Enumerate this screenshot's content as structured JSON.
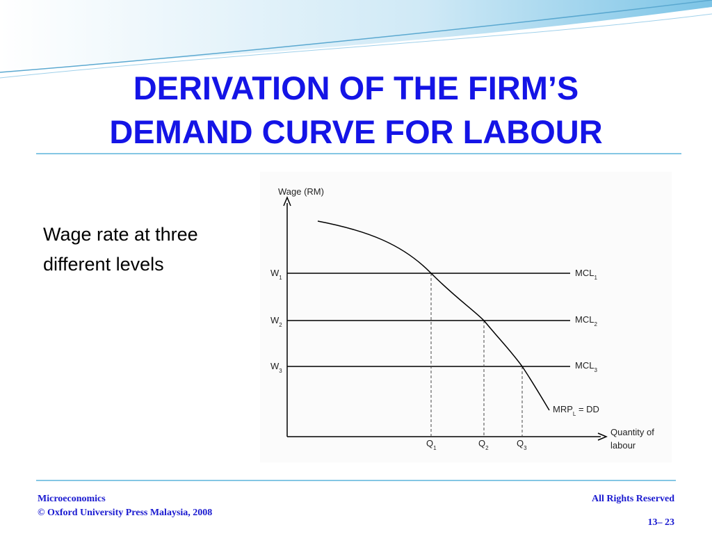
{
  "title": [
    "DERIVATION OF THE FIRM’S",
    "DEMAND CURVE FOR LABOUR"
  ],
  "body": [
    "Wage rate at three",
    "different levels"
  ],
  "diagram": {
    "y_axis_label": "Wage (RM)",
    "x_axis_label": [
      "Quantity of",
      "labour"
    ],
    "wages": [
      {
        "label": "W",
        "sub": "1"
      },
      {
        "label": "W",
        "sub": "2"
      },
      {
        "label": "W",
        "sub": "3"
      }
    ],
    "quantities": [
      {
        "label": "Q",
        "sub": "1"
      },
      {
        "label": "Q",
        "sub": "2"
      },
      {
        "label": "Q",
        "sub": "3"
      }
    ],
    "supply_lines": [
      {
        "label": "MCL",
        "sub": "1"
      },
      {
        "label": "MCL",
        "sub": "2"
      },
      {
        "label": "MCL",
        "sub": "3"
      }
    ],
    "curve": {
      "label": "MRP",
      "sub": "L",
      "suffix": " = DD"
    }
  },
  "footer": {
    "left": [
      "Microeconomics",
      "© Oxford University Press Malaysia, 2008"
    ],
    "right": "All Rights Reserved",
    "page": "13– 23"
  }
}
